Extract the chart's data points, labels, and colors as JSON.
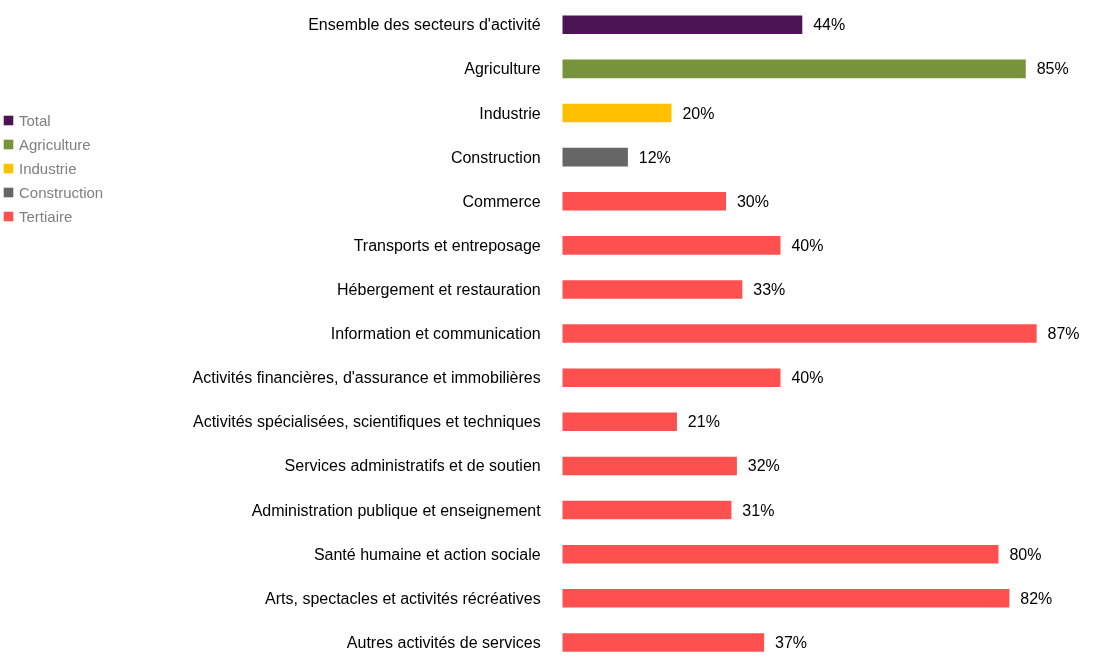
{
  "chart_data": {
    "type": "bar",
    "orientation": "horizontal",
    "stacked": true,
    "legend": "left",
    "data_labels": false,
    "categories": [
      "Ensemble des secteurs d'activité",
      "Agriculture",
      "Industrie",
      "Construction",
      "Commerce",
      "Transports et entreposage",
      "Hébergement et restauration",
      "Information et communication",
      "Activités financières, d'assurance et immobilières",
      "Activités spécialisées, scientifiques et techniques",
      "Services administratifs et de soutien",
      "Administration publique et enseignement",
      "Santé humaine et action sociale",
      "Arts, spectacles et activités récréatives",
      "Autres activités de services"
    ],
    "series": [
      {
        "name": "Total",
        "color": "#4b1553",
        "values": [
          44,
          null,
          null,
          null,
          null,
          null,
          null,
          null,
          null,
          null,
          null,
          null,
          null,
          null,
          null
        ],
        "value_labels": [
          "44%",
          null,
          null,
          null,
          null,
          null,
          null,
          null,
          null,
          null,
          null,
          null,
          null,
          null,
          null
        ]
      },
      {
        "name": "Agriculture",
        "color": "#77933c",
        "values": [
          null,
          85,
          null,
          null,
          null,
          null,
          null,
          null,
          null,
          null,
          null,
          null,
          null,
          null,
          null
        ],
        "value_labels": [
          null,
          "85%",
          null,
          null,
          null,
          null,
          null,
          null,
          null,
          null,
          null,
          null,
          null,
          null,
          null
        ]
      },
      {
        "name": "Industrie",
        "color": "#ffc000",
        "values": [
          null,
          null,
          20,
          null,
          null,
          null,
          null,
          null,
          null,
          null,
          null,
          null,
          null,
          null,
          null
        ],
        "value_labels": [
          null,
          null,
          "20%",
          null,
          null,
          null,
          null,
          null,
          null,
          null,
          null,
          null,
          null,
          null,
          null
        ]
      },
      {
        "name": "Construction",
        "color": "#666666",
        "values": [
          null,
          null,
          null,
          12,
          null,
          null,
          null,
          null,
          null,
          null,
          null,
          null,
          null,
          null,
          null
        ],
        "value_labels": [
          null,
          null,
          null,
          "12%",
          null,
          null,
          null,
          null,
          null,
          null,
          null,
          null,
          null,
          null,
          null
        ]
      },
      {
        "name": "Tertiaire",
        "color": "#ff5050",
        "values": [
          null,
          null,
          null,
          null,
          30,
          40,
          33,
          87,
          40,
          21,
          32,
          31,
          80,
          82,
          37
        ],
        "value_labels": [
          null,
          null,
          null,
          null,
          "30%",
          "40%",
          "33%",
          "87%",
          "40%",
          "21%",
          "32%",
          "31%",
          "80%",
          "82%",
          "37%"
        ]
      }
    ]
  }
}
